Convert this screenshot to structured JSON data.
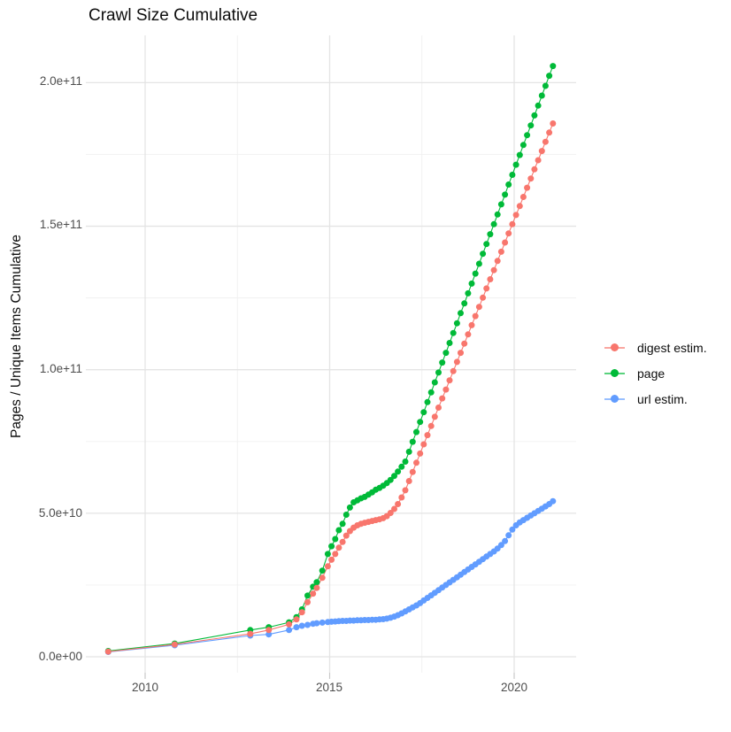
{
  "chart_data": {
    "type": "scatter",
    "title": "Crawl Size Cumulative",
    "xlabel": "",
    "ylabel": "Pages / Unique Items Cumulative",
    "value_unit": "pages (values stored as multiples of 1e9)",
    "xlim": [
      2008.4,
      2021.7
    ],
    "ylim_e9": [
      -8,
      216
    ],
    "grid": {
      "x_minor_years": [
        2012.5,
        2017.5
      ],
      "y_minor_e9": [
        25,
        75,
        125,
        175
      ],
      "grid_on": true
    },
    "x_ticks": [
      {
        "label": "2010",
        "year": 2010
      },
      {
        "label": "2015",
        "year": 2015
      },
      {
        "label": "2020",
        "year": 2020
      }
    ],
    "y_ticks": [
      {
        "label": "2.0e+11",
        "value_e9": 200
      },
      {
        "label": "1.5e+11",
        "value_e9": 150
      },
      {
        "label": "1.0e+11",
        "value_e9": 100
      },
      {
        "label": "5.0e+10",
        "value_e9": 50
      },
      {
        "label": "0.0e+00",
        "value_e9": 0
      }
    ],
    "legend_position": "right",
    "series": [
      {
        "name": "digest estim.",
        "color": "#F8766D",
        "points": [
          [
            2009.0,
            1.8
          ],
          [
            2010.8,
            4.3
          ],
          [
            2012.85,
            8.0
          ],
          [
            2013.35,
            9.3
          ],
          [
            2013.9,
            11.3
          ],
          [
            2014.1,
            13.0
          ],
          [
            2014.25,
            15.5
          ],
          [
            2014.4,
            19.0
          ],
          [
            2014.55,
            22.0
          ],
          [
            2014.65,
            24.0
          ],
          [
            2014.8,
            27.5
          ],
          [
            2014.95,
            31.5
          ],
          [
            2015.05,
            33.8
          ],
          [
            2015.15,
            35.8
          ],
          [
            2015.25,
            38.0
          ],
          [
            2015.35,
            40.0
          ],
          [
            2015.45,
            42.2
          ],
          [
            2015.55,
            43.8
          ],
          [
            2015.65,
            45.0
          ],
          [
            2015.75,
            45.8
          ],
          [
            2015.85,
            46.3
          ],
          [
            2015.95,
            46.7
          ],
          [
            2016.05,
            47.0
          ],
          [
            2016.15,
            47.3
          ],
          [
            2016.25,
            47.6
          ],
          [
            2016.35,
            47.9
          ],
          [
            2016.45,
            48.3
          ],
          [
            2016.55,
            49.0
          ],
          [
            2016.65,
            50.1
          ],
          [
            2016.75,
            51.5
          ],
          [
            2016.85,
            53.2
          ],
          [
            2016.95,
            55.5
          ],
          [
            2017.05,
            58.0
          ],
          [
            2017.15,
            61.2
          ],
          [
            2017.25,
            64.4
          ],
          [
            2017.35,
            67.6
          ],
          [
            2017.45,
            70.8
          ],
          [
            2017.55,
            74.0
          ],
          [
            2017.65,
            77.2
          ],
          [
            2017.75,
            80.4
          ],
          [
            2017.85,
            83.6
          ],
          [
            2017.95,
            86.8
          ],
          [
            2018.05,
            90.0
          ],
          [
            2018.15,
            93.1
          ],
          [
            2018.25,
            96.3
          ],
          [
            2018.35,
            99.5
          ],
          [
            2018.45,
            102.7
          ],
          [
            2018.55,
            105.9
          ],
          [
            2018.65,
            109.1
          ],
          [
            2018.75,
            112.3
          ],
          [
            2018.85,
            115.5
          ],
          [
            2018.95,
            118.7
          ],
          [
            2019.05,
            121.9
          ],
          [
            2019.15,
            125.1
          ],
          [
            2019.25,
            128.3
          ],
          [
            2019.35,
            131.5
          ],
          [
            2019.45,
            134.7
          ],
          [
            2019.55,
            137.9
          ],
          [
            2019.65,
            141.1
          ],
          [
            2019.75,
            144.3
          ],
          [
            2019.85,
            147.5
          ],
          [
            2019.95,
            150.7
          ],
          [
            2020.05,
            153.9
          ],
          [
            2020.15,
            157.0
          ],
          [
            2020.25,
            160.2
          ],
          [
            2020.35,
            163.4
          ],
          [
            2020.45,
            166.6
          ],
          [
            2020.55,
            169.8
          ],
          [
            2020.65,
            173.0
          ],
          [
            2020.75,
            176.2
          ],
          [
            2020.85,
            179.4
          ],
          [
            2020.95,
            182.6
          ],
          [
            2021.05,
            185.8
          ]
        ]
      },
      {
        "name": "page",
        "color": "#00BA38",
        "points": [
          [
            2009.0,
            2.0
          ],
          [
            2010.8,
            4.6
          ],
          [
            2012.85,
            9.3
          ],
          [
            2013.35,
            10.3
          ],
          [
            2013.9,
            12.0
          ],
          [
            2014.1,
            13.8
          ],
          [
            2014.25,
            16.5
          ],
          [
            2014.4,
            21.3
          ],
          [
            2014.55,
            24.4
          ],
          [
            2014.65,
            26.0
          ],
          [
            2014.8,
            30.0
          ],
          [
            2014.95,
            35.8
          ],
          [
            2015.05,
            38.5
          ],
          [
            2015.15,
            41.0
          ],
          [
            2015.25,
            44.1
          ],
          [
            2015.35,
            46.3
          ],
          [
            2015.45,
            49.5
          ],
          [
            2015.55,
            52.0
          ],
          [
            2015.65,
            53.8
          ],
          [
            2015.75,
            54.5
          ],
          [
            2015.85,
            55.2
          ],
          [
            2015.95,
            55.7
          ],
          [
            2016.05,
            56.5
          ],
          [
            2016.15,
            57.3
          ],
          [
            2016.25,
            58.2
          ],
          [
            2016.35,
            58.8
          ],
          [
            2016.45,
            59.6
          ],
          [
            2016.55,
            60.5
          ],
          [
            2016.65,
            61.6
          ],
          [
            2016.75,
            63.0
          ],
          [
            2016.85,
            64.5
          ],
          [
            2016.95,
            66.2
          ],
          [
            2017.05,
            68.0
          ],
          [
            2017.15,
            71.4
          ],
          [
            2017.25,
            74.9
          ],
          [
            2017.35,
            78.3
          ],
          [
            2017.45,
            81.8
          ],
          [
            2017.55,
            85.2
          ],
          [
            2017.65,
            88.7
          ],
          [
            2017.75,
            92.1
          ],
          [
            2017.85,
            95.6
          ],
          [
            2017.95,
            99.0
          ],
          [
            2018.05,
            102.5
          ],
          [
            2018.15,
            105.9
          ],
          [
            2018.25,
            109.3
          ],
          [
            2018.35,
            112.8
          ],
          [
            2018.45,
            116.2
          ],
          [
            2018.55,
            119.7
          ],
          [
            2018.65,
            123.1
          ],
          [
            2018.75,
            126.6
          ],
          [
            2018.85,
            130.0
          ],
          [
            2018.95,
            133.5
          ],
          [
            2019.05,
            136.9
          ],
          [
            2019.15,
            140.4
          ],
          [
            2019.25,
            143.8
          ],
          [
            2019.35,
            147.2
          ],
          [
            2019.45,
            150.7
          ],
          [
            2019.55,
            154.1
          ],
          [
            2019.65,
            157.6
          ],
          [
            2019.75,
            161.0
          ],
          [
            2019.85,
            164.5
          ],
          [
            2019.95,
            167.9
          ],
          [
            2020.05,
            171.4
          ],
          [
            2020.15,
            174.8
          ],
          [
            2020.25,
            178.3
          ],
          [
            2020.35,
            181.7
          ],
          [
            2020.45,
            185.1
          ],
          [
            2020.55,
            188.6
          ],
          [
            2020.65,
            192.0
          ],
          [
            2020.75,
            195.5
          ],
          [
            2020.85,
            198.9
          ],
          [
            2020.95,
            202.4
          ],
          [
            2021.05,
            205.8
          ]
        ]
      },
      {
        "name": "url estim.",
        "color": "#619CFF",
        "points": [
          [
            2009.0,
            1.7
          ],
          [
            2010.8,
            4.0
          ],
          [
            2012.85,
            7.4
          ],
          [
            2013.35,
            7.8
          ],
          [
            2013.9,
            9.3
          ],
          [
            2014.1,
            10.3
          ],
          [
            2014.25,
            10.8
          ],
          [
            2014.4,
            11.1
          ],
          [
            2014.55,
            11.5
          ],
          [
            2014.65,
            11.7
          ],
          [
            2014.8,
            11.9
          ],
          [
            2014.95,
            12.1
          ],
          [
            2015.05,
            12.2
          ],
          [
            2015.15,
            12.3
          ],
          [
            2015.25,
            12.4
          ],
          [
            2015.35,
            12.5
          ],
          [
            2015.45,
            12.5
          ],
          [
            2015.55,
            12.6
          ],
          [
            2015.65,
            12.6
          ],
          [
            2015.75,
            12.7
          ],
          [
            2015.85,
            12.7
          ],
          [
            2015.95,
            12.8
          ],
          [
            2016.05,
            12.8
          ],
          [
            2016.15,
            12.9
          ],
          [
            2016.25,
            12.9
          ],
          [
            2016.35,
            13.0
          ],
          [
            2016.45,
            13.1
          ],
          [
            2016.55,
            13.3
          ],
          [
            2016.65,
            13.6
          ],
          [
            2016.75,
            14.0
          ],
          [
            2016.85,
            14.5
          ],
          [
            2016.95,
            15.1
          ],
          [
            2017.05,
            15.8
          ],
          [
            2017.15,
            16.5
          ],
          [
            2017.25,
            17.2
          ],
          [
            2017.35,
            17.9
          ],
          [
            2017.45,
            18.7
          ],
          [
            2017.55,
            19.6
          ],
          [
            2017.65,
            20.5
          ],
          [
            2017.75,
            21.4
          ],
          [
            2017.85,
            22.3
          ],
          [
            2017.95,
            23.2
          ],
          [
            2018.05,
            24.1
          ],
          [
            2018.15,
            25.0
          ],
          [
            2018.25,
            25.9
          ],
          [
            2018.35,
            26.8
          ],
          [
            2018.45,
            27.7
          ],
          [
            2018.55,
            28.6
          ],
          [
            2018.65,
            29.5
          ],
          [
            2018.75,
            30.4
          ],
          [
            2018.85,
            31.3
          ],
          [
            2018.95,
            32.2
          ],
          [
            2019.05,
            33.1
          ],
          [
            2019.15,
            34.0
          ],
          [
            2019.25,
            34.9
          ],
          [
            2019.35,
            35.8
          ],
          [
            2019.45,
            36.7
          ],
          [
            2019.55,
            37.7
          ],
          [
            2019.65,
            38.9
          ],
          [
            2019.75,
            40.3
          ],
          [
            2019.85,
            42.3
          ],
          [
            2019.95,
            44.3
          ],
          [
            2020.05,
            45.8
          ],
          [
            2020.15,
            46.8
          ],
          [
            2020.25,
            47.6
          ],
          [
            2020.35,
            48.4
          ],
          [
            2020.45,
            49.2
          ],
          [
            2020.55,
            50.0
          ],
          [
            2020.65,
            50.8
          ],
          [
            2020.75,
            51.6
          ],
          [
            2020.85,
            52.4
          ],
          [
            2020.95,
            53.2
          ],
          [
            2021.05,
            54.2
          ]
        ]
      }
    ]
  }
}
